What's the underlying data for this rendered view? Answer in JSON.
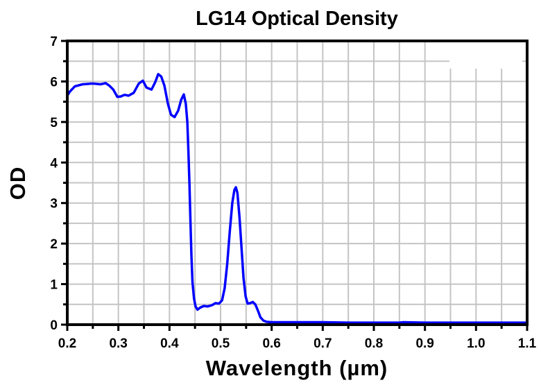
{
  "chart_data": {
    "type": "line",
    "title": "LG14 Optical Density",
    "xlabel": "Wavelength (µm)",
    "ylabel": "OD",
    "xlim": [
      0.2,
      1.1
    ],
    "ylim": [
      0,
      7
    ],
    "x_ticks": [
      "0.2",
      "0.3",
      "0.4",
      "0.5",
      "0.6",
      "0.7",
      "0.8",
      "0.9",
      "1.0",
      "1.1"
    ],
    "x_tick_values": [
      0.2,
      0.3,
      0.4,
      0.5,
      0.6,
      0.7,
      0.8,
      0.9,
      1.0,
      1.1
    ],
    "x_minor_step": 0.05,
    "y_ticks": [
      "0",
      "1",
      "2",
      "3",
      "4",
      "5",
      "6",
      "7"
    ],
    "y_tick_values": [
      0,
      1,
      2,
      3,
      4,
      5,
      6,
      7
    ],
    "y_minor_step": 0.5,
    "grid": true,
    "series": [
      {
        "name": "LG14",
        "color": "#0000ff",
        "x": [
          0.2,
          0.205,
          0.215,
          0.23,
          0.25,
          0.265,
          0.275,
          0.282,
          0.29,
          0.298,
          0.305,
          0.312,
          0.32,
          0.33,
          0.34,
          0.348,
          0.355,
          0.365,
          0.372,
          0.378,
          0.384,
          0.39,
          0.397,
          0.403,
          0.41,
          0.417,
          0.423,
          0.428,
          0.432,
          0.435,
          0.437,
          0.439,
          0.441,
          0.443,
          0.445,
          0.448,
          0.451,
          0.455,
          0.46,
          0.467,
          0.475,
          0.483,
          0.49,
          0.497,
          0.503,
          0.508,
          0.513,
          0.518,
          0.523,
          0.527,
          0.53,
          0.533,
          0.537,
          0.541,
          0.545,
          0.549,
          0.553,
          0.558,
          0.563,
          0.568,
          0.573,
          0.578,
          0.584,
          0.59,
          0.6,
          0.65,
          0.7,
          0.75,
          0.8,
          0.85,
          0.858,
          0.9,
          0.95,
          1.0,
          1.05,
          1.1
        ],
        "y": [
          5.65,
          5.75,
          5.88,
          5.93,
          5.95,
          5.93,
          5.96,
          5.9,
          5.8,
          5.62,
          5.63,
          5.67,
          5.65,
          5.72,
          5.95,
          6.02,
          5.85,
          5.8,
          5.98,
          6.18,
          6.12,
          5.9,
          5.45,
          5.18,
          5.12,
          5.28,
          5.55,
          5.68,
          5.45,
          5.0,
          4.3,
          3.5,
          2.6,
          1.7,
          1.05,
          0.65,
          0.45,
          0.37,
          0.42,
          0.46,
          0.45,
          0.48,
          0.53,
          0.52,
          0.6,
          0.9,
          1.5,
          2.3,
          3.0,
          3.32,
          3.39,
          3.25,
          2.65,
          1.9,
          1.15,
          0.7,
          0.52,
          0.53,
          0.56,
          0.5,
          0.35,
          0.18,
          0.1,
          0.07,
          0.06,
          0.06,
          0.06,
          0.05,
          0.05,
          0.05,
          0.06,
          0.05,
          0.05,
          0.05,
          0.05,
          0.05
        ]
      }
    ],
    "legend": "none (blank box top-right)"
  }
}
